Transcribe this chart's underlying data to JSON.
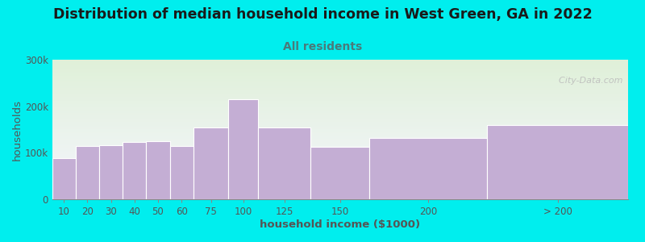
{
  "title": "Distribution of median household income in West Green, GA in 2022",
  "subtitle": "All residents",
  "xlabel": "household income ($1000)",
  "ylabel": "households",
  "background_color": "#00EEEE",
  "plot_bg_top": "#dff0d8",
  "plot_bg_bottom": "#f5f5ff",
  "bar_color": "#c4aed4",
  "bar_edge_color": "#ffffff",
  "categories": [
    "10",
    "20",
    "30",
    "40",
    "50",
    "60",
    "75",
    "100",
    "125",
    "150",
    "200",
    "> 200"
  ],
  "values": [
    88000,
    115000,
    117000,
    123000,
    125000,
    115000,
    155000,
    215000,
    155000,
    113000,
    132000,
    160000
  ],
  "ylim": [
    0,
    300000
  ],
  "ytick_labels": [
    "0",
    "100k",
    "200k",
    "300k"
  ],
  "watermark": "  City-Data.com",
  "title_fontsize": 12.5,
  "subtitle_fontsize": 10,
  "axis_label_fontsize": 9.5,
  "tick_fontsize": 8.5,
  "bar_lefts": [
    5,
    15,
    25,
    35,
    45,
    55,
    65,
    80,
    92.5,
    115,
    140,
    190
  ],
  "bar_widths": [
    10,
    10,
    10,
    10,
    10,
    10,
    15,
    12.5,
    22.5,
    25,
    50,
    60
  ]
}
